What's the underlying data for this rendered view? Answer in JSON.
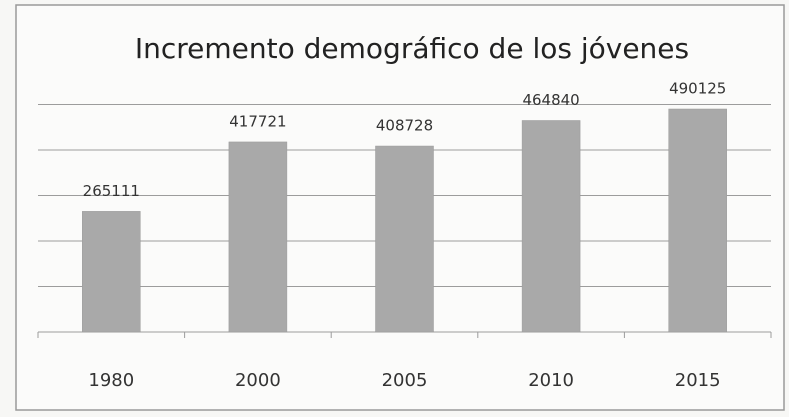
{
  "chart_data": {
    "type": "bar",
    "title": "Incremento demográfico de los jóvenes",
    "categories": [
      "1980",
      "2000",
      "2005",
      "2010",
      "2015"
    ],
    "values": [
      265111,
      417721,
      408728,
      464840,
      490125
    ],
    "color": "#a9a9a9",
    "ylim": [
      0,
      500000
    ],
    "yticks": [
      0,
      100000,
      200000,
      300000,
      400000,
      500000
    ],
    "grid": true
  }
}
